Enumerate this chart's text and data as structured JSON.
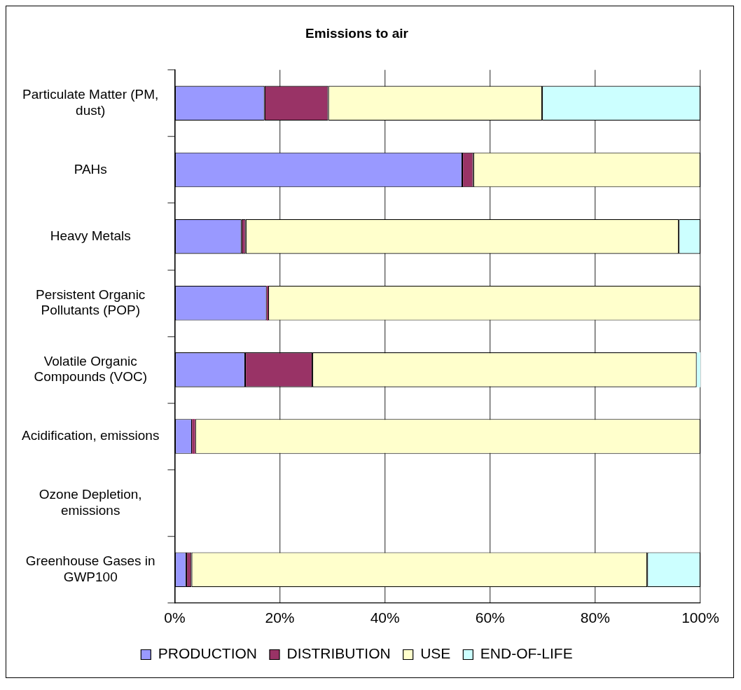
{
  "chart_data": {
    "type": "bar",
    "orientation": "horizontal",
    "stacked": true,
    "title": "Emissions to air",
    "categories": [
      "Particulate Matter (PM, dust)",
      "PAHs",
      "Heavy Metals",
      "Persistent Organic Pollutants (POP)",
      "Volatile Organic Compounds (VOC)",
      "Acidification, emissions",
      "Ozone Depletion, emissions",
      "Greenhouse Gases in GWP100"
    ],
    "series": [
      {
        "name": "PRODUCTION",
        "color": "#9999ff",
        "values": [
          17.1,
          54.7,
          12.7,
          17.5,
          13.4,
          3.3,
          null,
          2.2
        ]
      },
      {
        "name": "DISTRIBUTION",
        "color": "#993366",
        "values": [
          12.1,
          2.1,
          0.8,
          0.3,
          12.8,
          0.6,
          null,
          1.0
        ]
      },
      {
        "name": "USE",
        "color": "#ffffcc",
        "values": [
          40.7,
          43.2,
          82.4,
          82.2,
          73.1,
          96.1,
          null,
          86.7
        ]
      },
      {
        "name": "END-OF-LIFE",
        "color": "#ccffff",
        "values": [
          30.1,
          0,
          4.1,
          0,
          0.7,
          0,
          null,
          10.1
        ]
      }
    ],
    "xlim": [
      0,
      100
    ],
    "xticks": [
      {
        "value": 0,
        "label": "0%"
      },
      {
        "value": 20,
        "label": "20%"
      },
      {
        "value": 40,
        "label": "40%"
      },
      {
        "value": 60,
        "label": "60%"
      },
      {
        "value": 80,
        "label": "80%"
      },
      {
        "value": 100,
        "label": "100%"
      }
    ],
    "grid": "x",
    "legend": "bottom"
  }
}
